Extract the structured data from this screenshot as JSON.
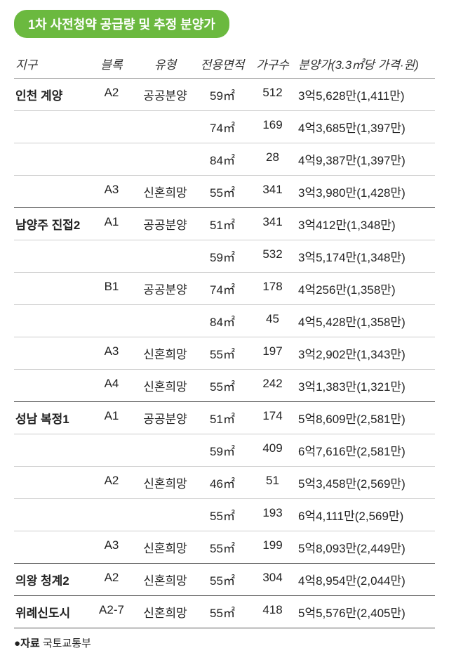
{
  "title": "1차 사전청약 공급량 및 추정 분양가",
  "columns": {
    "district": "지구",
    "block": "블록",
    "type": "유형",
    "area": "전용면적",
    "units": "가구수",
    "price": "분양가(3.3㎡당 가격·원)"
  },
  "rows": [
    {
      "district": "인천 계양",
      "block": "A2",
      "type": "공공분양",
      "area": "59㎡",
      "units": "512",
      "price": "3억5,628만(1,411만)"
    },
    {
      "district": "",
      "block": "",
      "type": "",
      "area": "74㎡",
      "units": "169",
      "price": "4억3,685만(1,397만)"
    },
    {
      "district": "",
      "block": "",
      "type": "",
      "area": "84㎡",
      "units": "28",
      "price": "4억9,387만(1,397만)"
    },
    {
      "district": "",
      "block": "A3",
      "type": "신혼희망",
      "area": "55㎡",
      "units": "341",
      "price": "3억3,980만(1,428만)",
      "groupEnd": true
    },
    {
      "district": "남양주 진접2",
      "block": "A1",
      "type": "공공분양",
      "area": "51㎡",
      "units": "341",
      "price": "3억412만(1,348만)"
    },
    {
      "district": "",
      "block": "",
      "type": "",
      "area": "59㎡",
      "units": "532",
      "price": "3억5,174만(1,348만)"
    },
    {
      "district": "",
      "block": "B1",
      "type": "공공분양",
      "area": "74㎡",
      "units": "178",
      "price": "4억256만(1,358만)"
    },
    {
      "district": "",
      "block": "",
      "type": "",
      "area": "84㎡",
      "units": "45",
      "price": "4억5,428만(1,358만)"
    },
    {
      "district": "",
      "block": "A3",
      "type": "신혼희망",
      "area": "55㎡",
      "units": "197",
      "price": "3억2,902만(1,343만)"
    },
    {
      "district": "",
      "block": "A4",
      "type": "신혼희망",
      "area": "55㎡",
      "units": "242",
      "price": "3억1,383만(1,321만)",
      "groupEnd": true
    },
    {
      "district": "성남 복정1",
      "block": "A1",
      "type": "공공분양",
      "area": "51㎡",
      "units": "174",
      "price": "5억8,609만(2,581만)"
    },
    {
      "district": "",
      "block": "",
      "type": "",
      "area": "59㎡",
      "units": "409",
      "price": "6억7,616만(2,581만)"
    },
    {
      "district": "",
      "block": "A2",
      "type": "신혼희망",
      "area": "46㎡",
      "units": "51",
      "price": "5억3,458만(2,569만)"
    },
    {
      "district": "",
      "block": "",
      "type": "",
      "area": "55㎡",
      "units": "193",
      "price": "6억4,111만(2,569만)"
    },
    {
      "district": "",
      "block": "A3",
      "type": "신혼희망",
      "area": "55㎡",
      "units": "199",
      "price": "5억8,093만(2,449만)",
      "groupEnd": true
    },
    {
      "district": "의왕 청계2",
      "block": "A2",
      "type": "신혼희망",
      "area": "55㎡",
      "units": "304",
      "price": "4억8,954만(2,044만)",
      "groupEnd": true
    },
    {
      "district": "위례신도시",
      "block": "A2-7",
      "type": "신혼희망",
      "area": "55㎡",
      "units": "418",
      "price": "5억5,576만(2,405만)",
      "groupEnd": true
    }
  ],
  "source_label": "자료",
  "source_value": "국토교통부"
}
